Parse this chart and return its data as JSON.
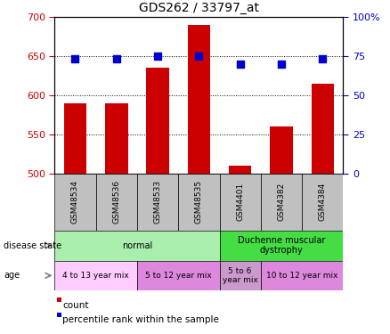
{
  "title": "GDS262 / 33797_at",
  "samples": [
    "GSM48534",
    "GSM48536",
    "GSM48533",
    "GSM48535",
    "GSM4401",
    "GSM4382",
    "GSM4384"
  ],
  "counts": [
    590,
    590,
    635,
    690,
    510,
    560,
    615
  ],
  "percentiles": [
    73,
    73,
    75,
    75,
    70,
    70,
    73
  ],
  "ylim_left": [
    500,
    700
  ],
  "ylim_right": [
    0,
    100
  ],
  "yticks_left": [
    500,
    550,
    600,
    650,
    700
  ],
  "yticks_right": [
    0,
    25,
    50,
    75,
    100
  ],
  "bar_color": "#cc0000",
  "dot_color": "#0000cc",
  "bar_width": 0.55,
  "disease_state_groups": [
    {
      "label": "normal",
      "start": 0,
      "end": 3,
      "color": "#aaeead"
    },
    {
      "label": "Duchenne muscular\ndystrophy",
      "start": 4,
      "end": 6,
      "color": "#44dd44"
    }
  ],
  "age_groups": [
    {
      "label": "4 to 13 year mix",
      "start": 0,
      "end": 1,
      "color": "#ffccff"
    },
    {
      "label": "5 to 12 year mix",
      "start": 2,
      "end": 3,
      "color": "#dd88dd"
    },
    {
      "label": "5 to 6\nyear mix",
      "start": 4,
      "end": 4,
      "color": "#cc99cc"
    },
    {
      "label": "10 to 12 year mix",
      "start": 5,
      "end": 6,
      "color": "#dd88dd"
    }
  ],
  "tick_label_color_left": "#cc0000",
  "tick_label_color_right": "#0000cc",
  "background_color": "#ffffff",
  "xtick_bg_color": "#c0c0c0",
  "legend_items": [
    {
      "label": "count",
      "color": "#cc0000"
    },
    {
      "label": "percentile rank within the sample",
      "color": "#0000cc"
    }
  ]
}
